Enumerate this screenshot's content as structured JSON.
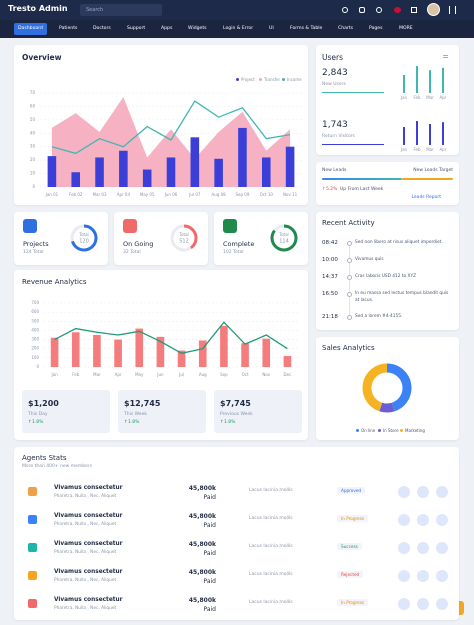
{
  "header": {
    "logo": "Tresto Admin",
    "search": "Search"
  },
  "nav": [
    "Dashboard",
    "Patients",
    "Doctors",
    "Support",
    "Apps",
    "Widgets",
    "Login & Error",
    "UI",
    "Forms & Table",
    "Charts",
    "Pages",
    "MORE"
  ],
  "overview": {
    "title": "Overview",
    "categories": [
      "Jan 01",
      "Feb 02",
      "Mar 03",
      "Apr 04",
      "May 05",
      "Jun 06",
      "Jul 07",
      "Aug 08",
      "Sep 09",
      "Oct 10",
      "Nov 11"
    ],
    "series": [
      {
        "name": "Project",
        "type": "bar",
        "color": "#3b3fd8",
        "values": [
          23,
          11,
          22,
          27,
          13,
          22,
          37,
          21,
          44,
          22,
          30
        ]
      },
      {
        "name": "Transfer",
        "type": "area",
        "color": "#f4a5b8",
        "values": [
          44,
          55,
          41,
          67,
          22,
          43,
          21,
          41,
          56,
          27,
          43
        ]
      },
      {
        "name": "Income",
        "type": "line",
        "color": "#3fb8b0",
        "values": [
          30,
          25,
          36,
          30,
          45,
          35,
          64,
          52,
          59,
          36,
          39
        ]
      }
    ],
    "ylim": [
      0,
      70
    ],
    "yticks": [
      0,
      10,
      20,
      30,
      40,
      50,
      60,
      70
    ]
  },
  "users": {
    "title": "Users",
    "categories": [
      "Jan",
      "Feb",
      "Mar",
      "Apr"
    ],
    "ylim": [
      0,
      50
    ],
    "new": {
      "value": "2,843",
      "label": "New Users",
      "color": "#3fb8b0",
      "values": [
        30,
        45,
        38,
        42
      ]
    },
    "return": {
      "value": "1,743",
      "label": "Return Visitors",
      "color": "#3b3fd8",
      "values": [
        30,
        40,
        35,
        38
      ]
    }
  },
  "leads": {
    "new": "New Leads",
    "target": "New Leads Target",
    "change": "5.2%",
    "note": "Up From Last Week",
    "link": "Leads Report"
  },
  "stats": [
    {
      "title": "Projects",
      "total": "124 Total",
      "ring_label": "Total",
      "ring_value": "120",
      "percent": 70,
      "color": "#2f6fe0"
    },
    {
      "title": "On Going",
      "total": "32 Total",
      "ring_label": "Total",
      "ring_value": "512",
      "percent": 40,
      "color": "#f16a6a"
    },
    {
      "title": "Complete",
      "total": "102 Total",
      "ring_label": "Total",
      "ring_value": "114",
      "percent": 85,
      "color": "#1f8a4c"
    }
  ],
  "activity": {
    "title": "Recent Activity",
    "items": [
      {
        "time": "08:42",
        "text": "Sed non libero at risus aliquet imperdiet."
      },
      {
        "time": "10:00",
        "text": "Vivamus quis"
      },
      {
        "time": "14:37",
        "text": "Cras laboris USD 412 to XYZ"
      },
      {
        "time": "16:50",
        "text": "In eu massa sed lectus tempus blandit quis at lacus."
      },
      {
        "time": "21:18",
        "text": "Sed a lorem #4-4155."
      }
    ]
  },
  "revenue": {
    "title": "Revenue Analytics",
    "categories": [
      "Jan",
      "Feb",
      "Mar",
      "Apr",
      "May",
      "Jun",
      "Jul",
      "Aug",
      "Sep",
      "Oct",
      "Nov",
      "Dec"
    ],
    "series": [
      {
        "type": "bar",
        "color": "#f47c7c",
        "values": [
          320,
          380,
          350,
          300,
          420,
          330,
          180,
          290,
          450,
          260,
          310,
          120
        ]
      },
      {
        "type": "line",
        "color": "#1f9a78",
        "values": [
          300,
          420,
          380,
          350,
          390,
          280,
          150,
          200,
          490,
          250,
          350,
          200
        ]
      }
    ],
    "ylim": [
      0,
      700
    ],
    "yticks": [
      0,
      100,
      200,
      300,
      400,
      500,
      600,
      700
    ]
  },
  "revenue_stats": [
    {
      "value": "$1,200",
      "label": "This Day",
      "change": "1.8%"
    },
    {
      "value": "$12,745",
      "label": "This Week",
      "change": "1.8%"
    },
    {
      "value": "$7,745",
      "label": "Previous Week",
      "change": "1.8%"
    }
  ],
  "sales": {
    "title": "Sales Analytics",
    "type": "donut",
    "series": [
      {
        "name": "On line",
        "value": 45,
        "color": "#3b82f6"
      },
      {
        "name": "In Store",
        "value": 10,
        "color": "#6b5bd6"
      },
      {
        "name": "Marketing",
        "value": 45,
        "color": "#f5b324"
      }
    ]
  },
  "agents": {
    "title": "Agents Stats",
    "subtitle": "More than 400+ new members",
    "rows": [
      {
        "name": "Vivamus consectetur",
        "sub": "Pharetra, Nulla , Nec, Aliquet",
        "amount": "45,800k",
        "amount_label": "Paid",
        "note": "Lacus lacinia mollis",
        "status": "Approved",
        "status_color": "#2f6fe0"
      },
      {
        "name": "Vivamus consectetur",
        "sub": "Pharetra, Nulla , Nec, Aliquet",
        "amount": "45,800k",
        "amount_label": "Paid",
        "note": "Lacus lacinia mollis",
        "status": "In Progress",
        "status_color": "#e8890c"
      },
      {
        "name": "Vivamus consectetur",
        "sub": "Pharetra, Nulla , Nec, Aliquet",
        "amount": "45,800k",
        "amount_label": "Paid",
        "note": "Lacus lacinia mollis",
        "status": "Success",
        "status_color": "#1f9a58"
      },
      {
        "name": "Vivamus consectetur",
        "sub": "Pharetra, Nulla , Nec, Aliquet",
        "amount": "45,800k",
        "amount_label": "Paid",
        "note": "Lacus lacinia mollis",
        "status": "Rejected",
        "status_color": "#e04848"
      },
      {
        "name": "Vivamus consectetur",
        "sub": "Pharetra, Nulla , Nec, Aliquet",
        "amount": "45,800k",
        "amount_label": "Paid",
        "note": "Lacus lacinia mollis",
        "status": "In Progress",
        "status_color": "#e8890c"
      }
    ]
  }
}
